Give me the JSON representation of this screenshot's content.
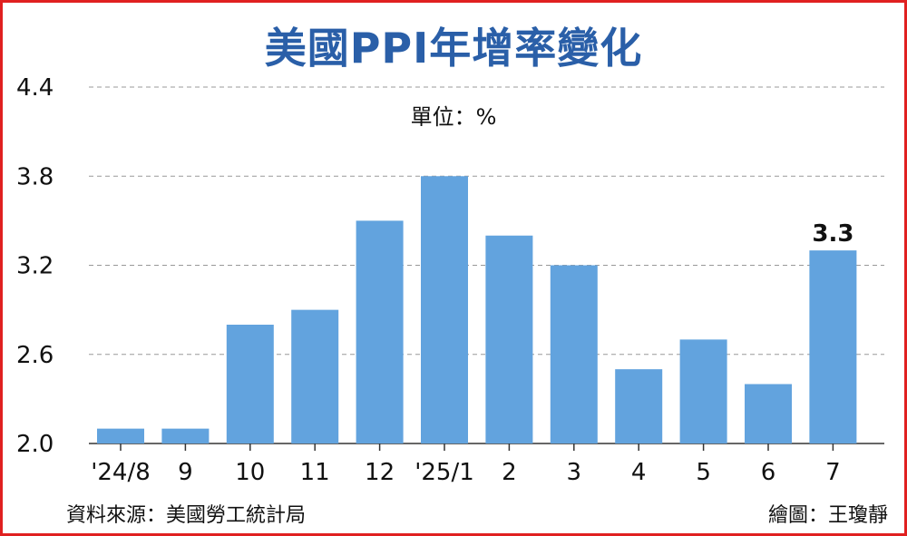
{
  "chart_data": {
    "type": "bar",
    "title": "美國PPI年增率變化",
    "unit_label": "單位：%",
    "categories": [
      "'24/8",
      "9",
      "10",
      "11",
      "12",
      "'25/1",
      "2",
      "3",
      "4",
      "5",
      "6",
      "7"
    ],
    "values": [
      2.1,
      2.1,
      2.8,
      2.9,
      3.5,
      3.8,
      3.4,
      3.2,
      2.5,
      2.7,
      2.4,
      3.3
    ],
    "y_ticks": [
      "2.0",
      "2.6",
      "3.2",
      "3.8",
      "4.4"
    ],
    "ylim": [
      2.0,
      4.4
    ],
    "grid": "dashed horizontal",
    "data_labels": [
      {
        "index": 11,
        "text": "3.3"
      }
    ],
    "bar_color": "#62a3de",
    "source": "資料來源：美國勞工統計局",
    "credit": "繪圖：王瓊靜"
  }
}
